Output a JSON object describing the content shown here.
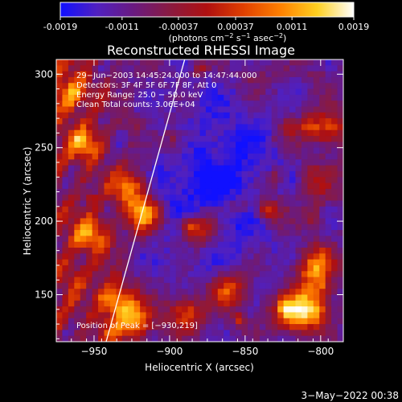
{
  "colorbar": {
    "tick_labels": [
      "-0.0019",
      "-0.0011",
      "-0.00037",
      "0.00037",
      "0.0011",
      "0.0019"
    ],
    "tick_values": [
      -0.0019,
      -0.0011,
      -0.00037,
      0.00037,
      0.0011,
      0.0019
    ],
    "range": [
      -0.0019,
      0.0019
    ],
    "unit_prefix": "(photons cm",
    "unit_exp1": "−2",
    "unit_mid": " s",
    "unit_exp2": "−1",
    "unit_mid2": " asec",
    "unit_exp3": "−2",
    "unit_suffix": ")",
    "colors": [
      "#1010ff",
      "#5020c0",
      "#6a1a80",
      "#8a1a40",
      "#b01010",
      "#e04000",
      "#ff8000",
      "#ffd020",
      "#ffffff"
    ]
  },
  "chart_data": {
    "type": "heatmap",
    "title": "Reconstructed RHESSI Image",
    "xlabel": "Heliocentric X (arcsec)",
    "ylabel": "Heliocentric Y (arcsec)",
    "xlim": [
      -975,
      -785
    ],
    "ylim": [
      118,
      310
    ],
    "xticks": [
      -950,
      -900,
      -850,
      -800
    ],
    "xtick_labels": [
      "−950",
      "−900",
      "−850",
      "−800"
    ],
    "yticks": [
      150,
      200,
      250,
      300
    ],
    "ytick_labels": [
      "150",
      "200",
      "250",
      "300"
    ],
    "limb_line": [
      [
        -942,
        118
      ],
      [
        -890,
        310
      ]
    ],
    "peak": [
      -930,
      219
    ],
    "annotations": [
      "29−Jun−2003 14:45:24.000 to 14:47:44.000",
      "Detectors: 3F 4F 5F 6F 7F 8F, Att 0",
      "Energy Range: 25.0 − 50.0 keV",
      "Clean     Total counts: 3.06E+04"
    ],
    "peak_label": "Position of Peak = [−930,219]"
  },
  "footer": {
    "date": "3−May−2022 00:38"
  }
}
